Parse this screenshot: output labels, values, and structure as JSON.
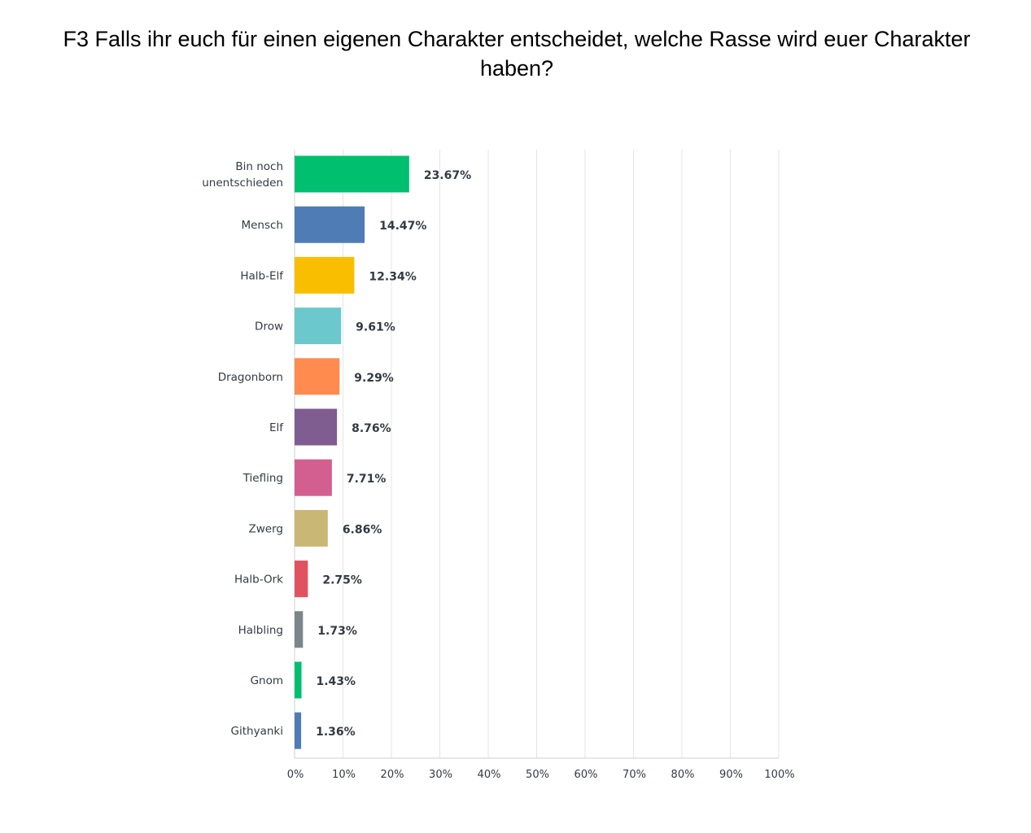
{
  "chart_data": {
    "type": "bar",
    "orientation": "horizontal",
    "title": "F3 Falls ihr euch für einen eigenen Charakter entscheidet, welche Rasse wird euer Charakter haben?",
    "categories": [
      [
        "Bin noch",
        "unentschieden"
      ],
      [
        "Mensch"
      ],
      [
        "Halb-Elf"
      ],
      [
        "Drow"
      ],
      [
        "Dragonborn"
      ],
      [
        "Elf"
      ],
      [
        "Tiefling"
      ],
      [
        "Zwerg"
      ],
      [
        "Halb-Ork"
      ],
      [
        "Halbling"
      ],
      [
        "Gnom"
      ],
      [
        "Githyanki"
      ]
    ],
    "values": [
      23.67,
      14.47,
      12.34,
      9.61,
      9.29,
      8.76,
      7.71,
      6.86,
      2.75,
      1.73,
      1.43,
      1.36
    ],
    "value_labels": [
      "23.67%",
      "14.47%",
      "12.34%",
      "9.61%",
      "9.29%",
      "8.76%",
      "7.71%",
      "6.86%",
      "2.75%",
      "1.73%",
      "1.43%",
      "1.36%"
    ],
    "colors": [
      "#00bf6f",
      "#507cb6",
      "#f9be00",
      "#6bc8cd",
      "#ff8b4f",
      "#7f5d90",
      "#d25f90",
      "#c9b775",
      "#e05260",
      "#7b868c",
      "#00bf6f",
      "#507cb6"
    ],
    "xlim": [
      0,
      100
    ],
    "xticks": [
      "0%",
      "10%",
      "20%",
      "30%",
      "40%",
      "50%",
      "60%",
      "70%",
      "80%",
      "90%",
      "100%"
    ],
    "grid": true,
    "gridColor": "#e5e5e5",
    "xlabel": "",
    "ylabel": ""
  }
}
